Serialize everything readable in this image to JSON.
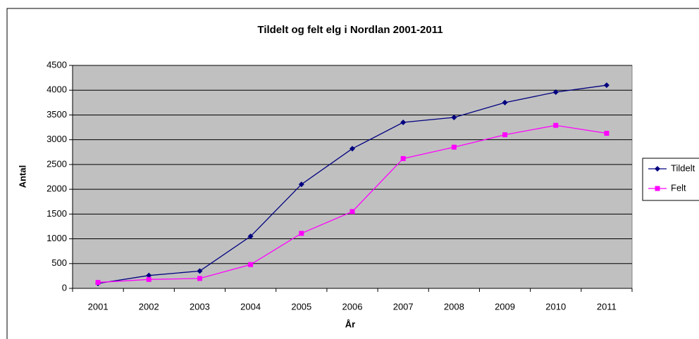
{
  "chart_data": {
    "type": "line",
    "title": "Tildelt og felt elg i Nordlan 2001-2011",
    "x_label": "År",
    "y_label": "Antal",
    "categories": [
      "2001",
      "2002",
      "2003",
      "2004",
      "2005",
      "2006",
      "2007",
      "2008",
      "2009",
      "2010",
      "2011"
    ],
    "series": [
      {
        "name": "Tildelt",
        "color": "#000080",
        "marker": "diamond",
        "values": [
          100,
          260,
          350,
          1050,
          2100,
          2820,
          3350,
          3450,
          3750,
          3960,
          4100
        ]
      },
      {
        "name": "Felt",
        "color": "#ff00ff",
        "marker": "square",
        "values": [
          120,
          180,
          200,
          480,
          1110,
          1550,
          2620,
          2850,
          3100,
          3290,
          3130
        ]
      }
    ],
    "ylim": [
      0,
      4500
    ],
    "yticks": [
      0,
      500,
      1000,
      1500,
      2000,
      2500,
      3000,
      3500,
      4000,
      4500
    ],
    "grid": true,
    "legend": "right",
    "plot_background": "#c0c0c0"
  }
}
